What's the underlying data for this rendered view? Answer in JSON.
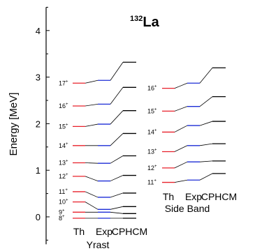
{
  "chart_data": {
    "type": "level-scheme",
    "title": {
      "mass": "132",
      "element": "La"
    },
    "ylabel": "Energy   [MeV]",
    "ylim": [
      -0.5,
      4.5
    ],
    "yticks": [
      "0",
      "1",
      "2",
      "3",
      "4"
    ],
    "column_labels": [
      "Th",
      "Exp",
      "CPHCM"
    ],
    "colors": {
      "Th": "#e8202a",
      "Exp": "#1b2bd6",
      "CPHCM": "#000000"
    },
    "bands": [
      {
        "name": "Yrast",
        "levels": [
          {
            "spin": "8",
            "parity": "+",
            "Th": -0.03,
            "Exp": -0.03,
            "CPHCM": -0.03
          },
          {
            "spin": "9",
            "parity": "+",
            "Th": 0.1,
            "Exp": 0.1,
            "CPHCM": 0.07
          },
          {
            "spin": "10",
            "parity": "+",
            "Th": 0.32,
            "Exp": 0.16,
            "CPHCM": 0.22
          },
          {
            "spin": "11",
            "parity": "+",
            "Th": 0.54,
            "Exp": 0.42,
            "CPHCM": 0.51
          },
          {
            "spin": "12",
            "parity": "+",
            "Th": 0.87,
            "Exp": 0.77,
            "CPHCM": 0.89
          },
          {
            "spin": "13",
            "parity": "+",
            "Th": 1.16,
            "Exp": 1.15,
            "CPHCM": 1.31
          },
          {
            "spin": "14",
            "parity": "+",
            "Th": 1.53,
            "Exp": 1.53,
            "CPHCM": 1.79
          },
          {
            "spin": "15",
            "parity": "+",
            "Th": 1.94,
            "Exp": 1.99,
            "CPHCM": 2.28
          },
          {
            "spin": "16",
            "parity": "+",
            "Th": 2.38,
            "Exp": 2.42,
            "CPHCM": 2.78
          },
          {
            "spin": "17",
            "parity": "+",
            "Th": 2.87,
            "Exp": 2.93,
            "CPHCM": 3.32
          }
        ]
      },
      {
        "name": "Side Band",
        "levels": [
          {
            "spin": "11",
            "parity": "+",
            "Th": 0.74,
            "Exp": 0.79,
            "CPHCM": 0.93
          },
          {
            "spin": "12",
            "parity": "+",
            "Th": 1.05,
            "Exp": 1.18,
            "CPHCM": 1.2
          },
          {
            "spin": "13",
            "parity": "+",
            "Th": 1.4,
            "Exp": 1.53,
            "CPHCM": 1.57
          },
          {
            "spin": "14",
            "parity": "+",
            "Th": 1.82,
            "Exp": 1.96,
            "CPHCM": 2.05
          },
          {
            "spin": "15",
            "parity": "+",
            "Th": 2.27,
            "Exp": 2.37,
            "CPHCM": 2.58
          },
          {
            "spin": "16",
            "parity": "+",
            "Th": 2.76,
            "Exp": 2.87,
            "CPHCM": 3.2
          }
        ]
      }
    ]
  }
}
